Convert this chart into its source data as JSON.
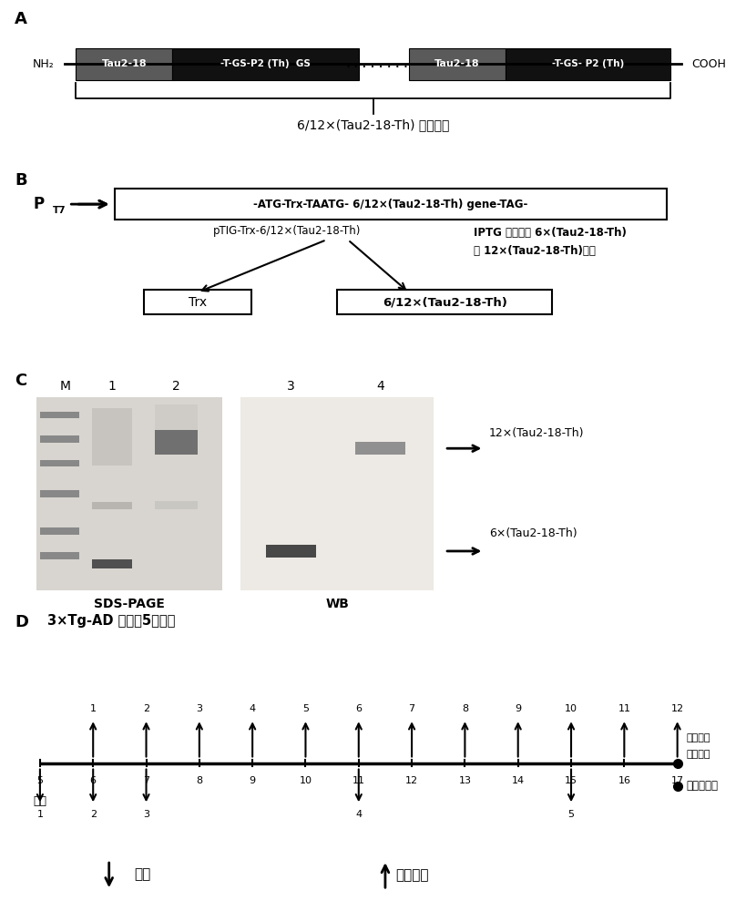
{
  "panel_A_label": "A",
  "panel_B_label": "B",
  "panel_C_label": "C",
  "panel_D_label": "D",
  "panel_A": {
    "caption": "6/12×(Tau2-18-Th) 结构形式"
  },
  "panel_B": {
    "gene_box_text": "-ATG-Trx-TAATG- 6/12×(Tau2-18-Th) gene-TAG-",
    "plasmid_label": "pTIG-Trx-6/12×(Tau2-18-Th)",
    "iptg_text1": "IPTG 诱导重组 6×(Tau2-18-Th)",
    "iptg_text2": "和 12×(Tau2-18-Th)表达",
    "trx_label": "Trx",
    "product_label": "6/12×(Tau2-18-Th)"
  },
  "panel_C": {
    "sds_label": "SDS-PAGE",
    "wb_label": "WB",
    "label_12x": "12×(Tau2-18-Th)",
    "label_6x": "6×(Tau2-18-Th)"
  },
  "panel_D": {
    "month_label": "月龄",
    "neuro_label1": "神经病理",
    "neuro_label2": "指标检测",
    "behavior_label": "行为学评价",
    "immunize_label": "免疫",
    "collect_label": "采集血清"
  },
  "bg_color": "#ffffff"
}
